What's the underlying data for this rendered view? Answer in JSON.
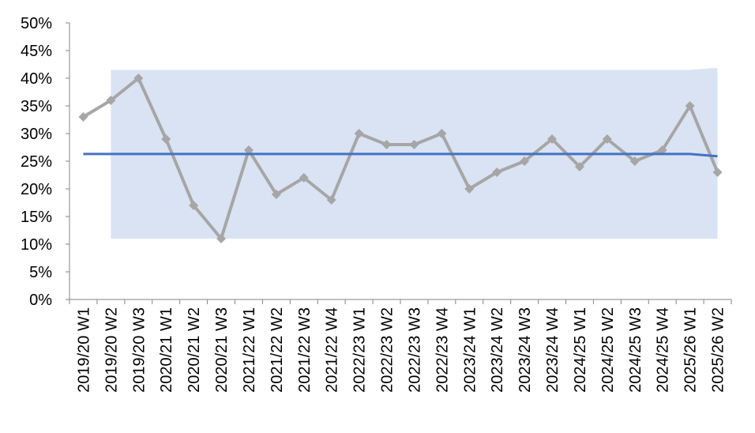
{
  "chart_data": {
    "type": "line",
    "categories": [
      "2019/20 W1",
      "2019/20 W2",
      "2019/20 W3",
      "2020/21 W1",
      "2020/21 W2",
      "2020/21 W3",
      "2021/22 W1",
      "2021/22 W2",
      "2021/22 W3",
      "2021/22 W4",
      "2022/23 W1",
      "2022/23 W2",
      "2022/23 W3",
      "2022/23 W4",
      "2023/24 W1",
      "2023/24 W2",
      "2023/24 W3",
      "2023/24 W4",
      "2024/25 W1",
      "2024/25 W2",
      "2024/25 W3",
      "2024/25 W4",
      "2025/26 W1",
      "2025/26 W2"
    ],
    "series": [
      {
        "color": "#a6a6a6",
        "marker": "diamond",
        "values": [
          33,
          36,
          40,
          29,
          17,
          11,
          27,
          19,
          22,
          18,
          30,
          28,
          28,
          30,
          20,
          23,
          25,
          29,
          24,
          29,
          25,
          27,
          35,
          23
        ]
      },
      {
        "color": "#4472c4",
        "values": [
          26.3,
          26.3,
          26.3,
          26.3,
          26.3,
          26.3,
          26.3,
          26.3,
          26.3,
          26.3,
          26.3,
          26.3,
          26.3,
          26.3,
          26.3,
          26.3,
          26.3,
          26.3,
          26.3,
          26.3,
          26.3,
          26.3,
          26.3,
          25.9
        ]
      }
    ],
    "band": {
      "color": "#dae3f3",
      "upper": [
        null,
        41.5,
        41.5,
        41.5,
        41.5,
        41.5,
        41.5,
        41.5,
        41.5,
        41.5,
        41.5,
        41.5,
        41.5,
        41.5,
        41.5,
        41.5,
        41.5,
        41.5,
        41.5,
        41.5,
        41.5,
        41.5,
        41.5,
        41.9
      ],
      "lower": [
        null,
        11,
        11,
        11,
        11,
        11,
        11,
        11,
        11,
        11,
        11,
        11,
        11,
        11,
        11,
        11,
        11,
        11,
        11,
        11,
        11,
        11,
        11,
        11
      ]
    },
    "ylim": [
      0,
      50
    ],
    "yticks": [
      {
        "value": 0,
        "label": "0%"
      },
      {
        "value": 5,
        "label": "5%"
      },
      {
        "value": 10,
        "label": "10%"
      },
      {
        "value": 15,
        "label": "15%"
      },
      {
        "value": 20,
        "label": "20%"
      },
      {
        "value": 25,
        "label": "25%"
      },
      {
        "value": 30,
        "label": "30%"
      },
      {
        "value": 35,
        "label": "35%"
      },
      {
        "value": 40,
        "label": "40%"
      },
      {
        "value": 45,
        "label": "45%"
      },
      {
        "value": 50,
        "label": "50%"
      }
    ],
    "grid": false
  }
}
